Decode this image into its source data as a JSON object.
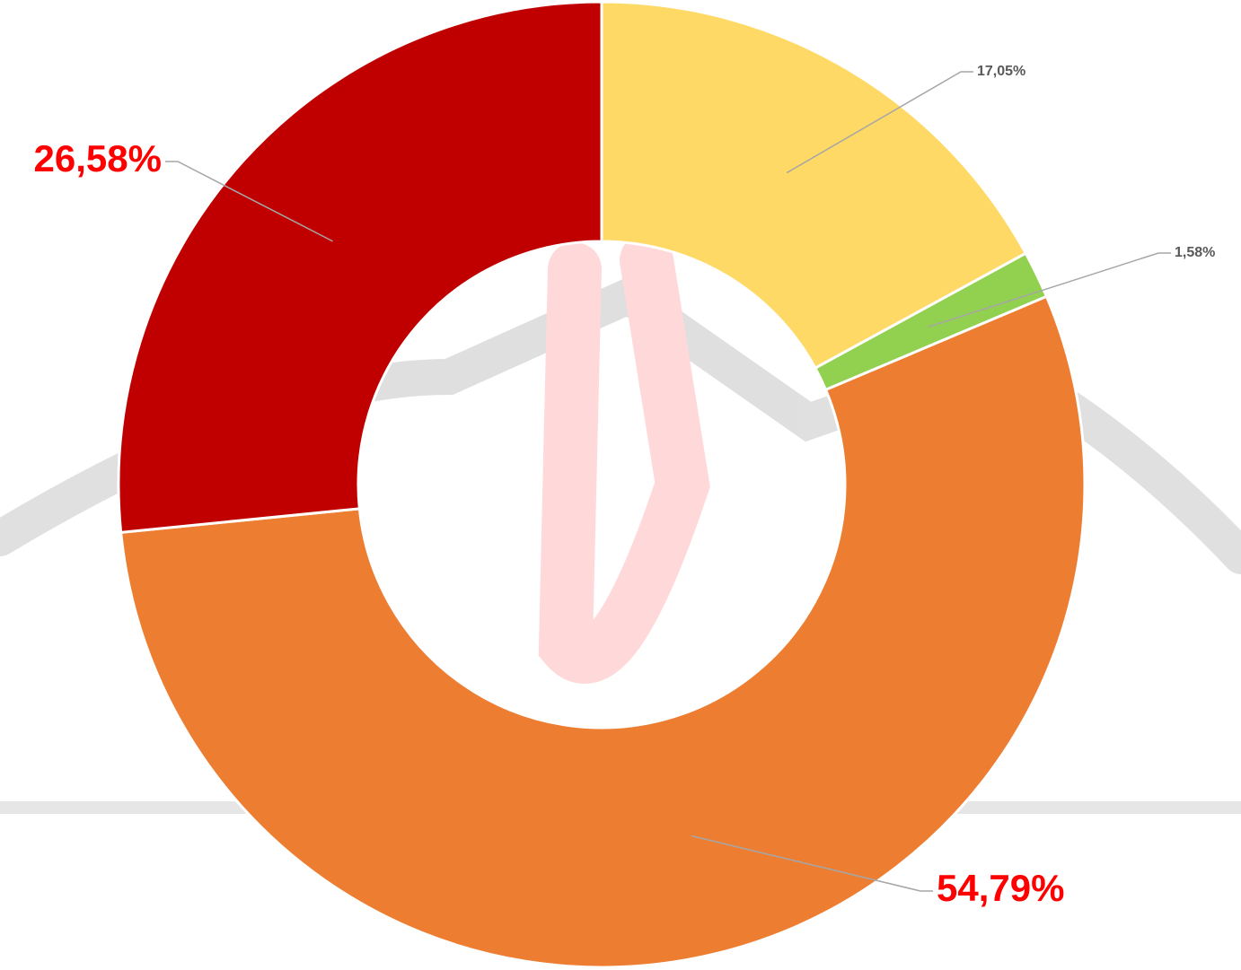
{
  "chart_data": {
    "type": "donut",
    "categories": [
      null,
      null,
      null,
      null
    ],
    "values": [
      17.05,
      1.58,
      54.79,
      26.58
    ],
    "value_labels": [
      "17,05%",
      "1,58%",
      "54,79%",
      "26,58%"
    ],
    "colors": [
      "#FFD966",
      "#92D050",
      "#ED7D31",
      "#C00000"
    ]
  }
}
